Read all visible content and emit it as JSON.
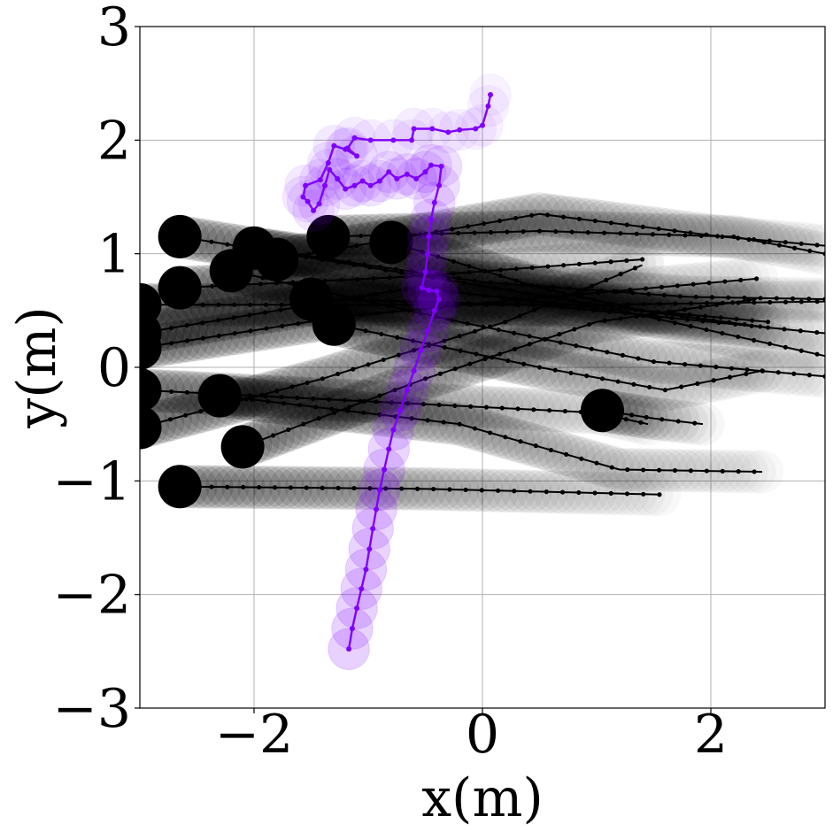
{
  "chart_data": {
    "type": "scatter",
    "title": "",
    "xlabel": "x(m)",
    "ylabel": "y(m)",
    "xlim": [
      -3,
      3
    ],
    "ylim": [
      -3,
      3
    ],
    "xticks": [
      -2,
      0,
      2
    ],
    "xtick_labels": [
      "−2",
      "0",
      "2"
    ],
    "yticks": [
      -3,
      -2,
      -1,
      0,
      1,
      2,
      3
    ],
    "ytick_labels": [
      "−3",
      "−2",
      "−1",
      "0",
      "1",
      "2",
      "3"
    ],
    "grid": true,
    "legend": "none",
    "colors": {
      "robot": "#7f00ff",
      "agents": "#000000",
      "grid": "#b0b0b0"
    },
    "robot_path": [
      [
        -1.17,
        -2.48
      ],
      [
        -1.14,
        -2.3
      ],
      [
        -1.1,
        -2.12
      ],
      [
        -1.06,
        -1.95
      ],
      [
        -1.02,
        -1.78
      ],
      [
        -0.99,
        -1.6
      ],
      [
        -0.96,
        -1.42
      ],
      [
        -0.93,
        -1.25
      ],
      [
        -0.9,
        -1.08
      ],
      [
        -0.86,
        -0.9
      ],
      [
        -0.82,
        -0.72
      ],
      [
        -0.78,
        -0.55
      ],
      [
        -0.72,
        -0.38
      ],
      [
        -0.66,
        -0.2
      ],
      [
        -0.6,
        -0.03
      ],
      [
        -0.54,
        0.15
      ],
      [
        -0.48,
        0.32
      ],
      [
        -0.42,
        0.5
      ],
      [
        -0.38,
        0.6
      ],
      [
        -0.4,
        0.67
      ],
      [
        -0.47,
        0.68
      ],
      [
        -0.53,
        0.7
      ],
      [
        -0.5,
        0.84
      ],
      [
        -0.48,
        1.0
      ],
      [
        -0.47,
        1.15
      ],
      [
        -0.45,
        1.3
      ],
      [
        -0.42,
        1.45
      ],
      [
        -0.38,
        1.6
      ],
      [
        -0.36,
        1.77
      ],
      [
        -0.45,
        1.78
      ],
      [
        -0.5,
        1.72
      ],
      [
        -0.58,
        1.66
      ],
      [
        -0.66,
        1.7
      ],
      [
        -0.75,
        1.66
      ],
      [
        -0.82,
        1.72
      ],
      [
        -0.9,
        1.64
      ],
      [
        -0.98,
        1.6
      ],
      [
        -1.05,
        1.64
      ],
      [
        -1.12,
        1.6
      ],
      [
        -1.2,
        1.57
      ],
      [
        -1.27,
        1.66
      ],
      [
        -1.34,
        1.74
      ],
      [
        -1.38,
        1.6
      ],
      [
        -1.43,
        1.44
      ],
      [
        -1.48,
        1.38
      ],
      [
        -1.53,
        1.46
      ],
      [
        -1.57,
        1.5
      ],
      [
        -1.55,
        1.6
      ],
      [
        -1.42,
        1.65
      ],
      [
        -1.35,
        1.8
      ],
      [
        -1.3,
        1.95
      ],
      [
        -1.2,
        1.92
      ],
      [
        -1.1,
        1.86
      ],
      [
        -1.18,
        1.93
      ],
      [
        -1.12,
        2.02
      ],
      [
        -0.98,
        2.0
      ],
      [
        -0.78,
        2.0
      ],
      [
        -0.62,
        2.0
      ],
      [
        -0.6,
        2.1
      ],
      [
        -0.44,
        2.1
      ],
      [
        -0.3,
        2.07
      ],
      [
        -0.2,
        2.09
      ],
      [
        -0.06,
        2.1
      ],
      [
        0.0,
        2.13
      ],
      [
        0.05,
        2.3
      ],
      [
        0.07,
        2.4
      ]
    ],
    "agent_paths": [
      [
        [
          -2.65,
          -1.05
        ],
        [
          -0.5,
          -1.07
        ],
        [
          1.55,
          -1.12
        ]
      ],
      [
        [
          -2.65,
          1.15
        ],
        [
          -0.5,
          0.8
        ],
        [
          1.0,
          0.55
        ],
        [
          2.5,
          0.35
        ]
      ],
      [
        [
          -2.65,
          0.7
        ],
        [
          -0.6,
          0.8
        ],
        [
          1.4,
          0.95
        ]
      ],
      [
        [
          -3.0,
          -0.2
        ],
        [
          -1.0,
          -0.3
        ],
        [
          1.0,
          -0.4
        ],
        [
          1.45,
          -0.5
        ]
      ],
      [
        [
          -3.0,
          0.55
        ],
        [
          -1.0,
          0.55
        ],
        [
          1.0,
          0.55
        ],
        [
          3.0,
          0.58
        ]
      ],
      [
        [
          -3.0,
          0.17
        ],
        [
          -1.2,
          0.45
        ],
        [
          0.6,
          0.62
        ],
        [
          2.4,
          0.78
        ]
      ],
      [
        [
          -3.0,
          -0.53
        ],
        [
          -1.4,
          -0.1
        ],
        [
          0.2,
          0.4
        ],
        [
          1.4,
          0.9
        ]
      ],
      [
        [
          -2.1,
          -0.7
        ],
        [
          -0.5,
          -0.1
        ],
        [
          1.0,
          0.4
        ],
        [
          2.4,
          0.6
        ]
      ],
      [
        [
          -1.35,
          1.15
        ],
        [
          0.5,
          1.2
        ],
        [
          2.2,
          1.15
        ],
        [
          3.0,
          1.0
        ]
      ],
      [
        [
          -1.3,
          0.38
        ],
        [
          0.5,
          0.0
        ],
        [
          1.6,
          -0.2
        ],
        [
          2.45,
          -0.03
        ]
      ],
      [
        [
          -2.3,
          -0.25
        ],
        [
          -0.2,
          -0.5
        ],
        [
          1.2,
          -0.9
        ],
        [
          2.45,
          -0.92
        ]
      ],
      [
        [
          -1.8,
          0.95
        ],
        [
          0.5,
          1.35
        ],
        [
          2.1,
          1.15
        ],
        [
          3.0,
          1.07
        ]
      ],
      [
        [
          -1.5,
          0.6
        ],
        [
          0.5,
          0.55
        ],
        [
          2.0,
          0.4
        ],
        [
          3.0,
          0.3
        ]
      ],
      [
        [
          -0.8,
          1.1
        ],
        [
          0.5,
          0.7
        ],
        [
          1.4,
          0.5
        ],
        [
          2.5,
          0.4
        ]
      ],
      [
        [
          -3.0,
          0.3
        ],
        [
          -0.6,
          0.7
        ],
        [
          1.2,
          0.5
        ],
        [
          3.0,
          0.1
        ]
      ],
      [
        [
          1.05,
          -0.38
        ],
        [
          1.5,
          -0.45
        ],
        [
          1.93,
          -0.5
        ]
      ],
      [
        [
          -2.0,
          1.05
        ],
        [
          0.0,
          0.75
        ],
        [
          1.8,
          0.62
        ],
        [
          3.0,
          0.6
        ]
      ],
      [
        [
          -2.2,
          0.85
        ],
        [
          -0.2,
          0.4
        ],
        [
          1.5,
          0.05
        ],
        [
          3.0,
          -0.08
        ]
      ]
    ],
    "agent_radius_m": 0.19,
    "robot_radius_m": 0.18
  }
}
